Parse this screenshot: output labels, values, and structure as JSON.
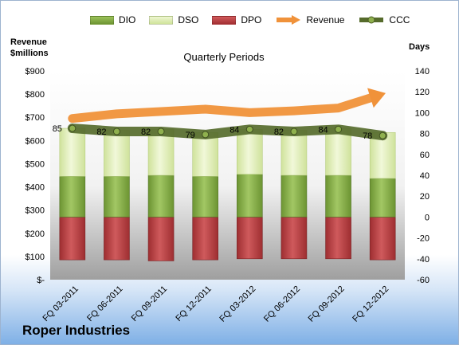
{
  "chart_data": {
    "type": "bar",
    "title": "Quarterly Periods",
    "left_axis_label": [
      "Revenue",
      "$millions"
    ],
    "right_axis_label": "Days",
    "categories": [
      "FQ 03-2011",
      "FQ 06-2011",
      "FQ 09-2011",
      "FQ 12-2011",
      "FQ 03-2012",
      "FQ 06-2012",
      "FQ 09-2012",
      "FQ 12-2012"
    ],
    "left_ticks": [
      "$900",
      "$800",
      "$700",
      "$600",
      "$500",
      "$400",
      "$300",
      "$200",
      "$100",
      "$-"
    ],
    "right_ticks": [
      "140",
      "120",
      "100",
      "80",
      "60",
      "40",
      "20",
      "0",
      "-20",
      "-40",
      "-60"
    ],
    "left_ylim": [
      0,
      900
    ],
    "right_ylim": [
      -60,
      140
    ],
    "series": [
      {
        "name": "DIO",
        "axis": "days",
        "color": "#77a03a",
        "values": [
          39,
          39,
          40,
          39,
          41,
          40,
          40,
          37
        ]
      },
      {
        "name": "DSO",
        "axis": "days",
        "color": "#d7e8a8",
        "values": [
          46,
          44,
          44,
          42,
          43,
          43,
          45,
          44
        ]
      },
      {
        "name": "DPO",
        "axis": "days",
        "color": "#b23a3d",
        "values": [
          -41,
          -41,
          -42,
          -41,
          -40,
          -40,
          -40,
          -41
        ]
      },
      {
        "name": "Revenue",
        "axis": "millions",
        "color": "#f0923a",
        "values": [
          695,
          715,
          725,
          735,
          720,
          728,
          740,
          800
        ]
      },
      {
        "name": "CCC",
        "axis": "days",
        "color": "#566b2c",
        "values": [
          85,
          82,
          82,
          79,
          84,
          82,
          84,
          78
        ]
      }
    ],
    "ccc_labels": [
      "85",
      "82",
      "82",
      "79",
      "84",
      "82",
      "84",
      "78"
    ],
    "grid": false,
    "legend": "top"
  },
  "company": "Roper Industries"
}
